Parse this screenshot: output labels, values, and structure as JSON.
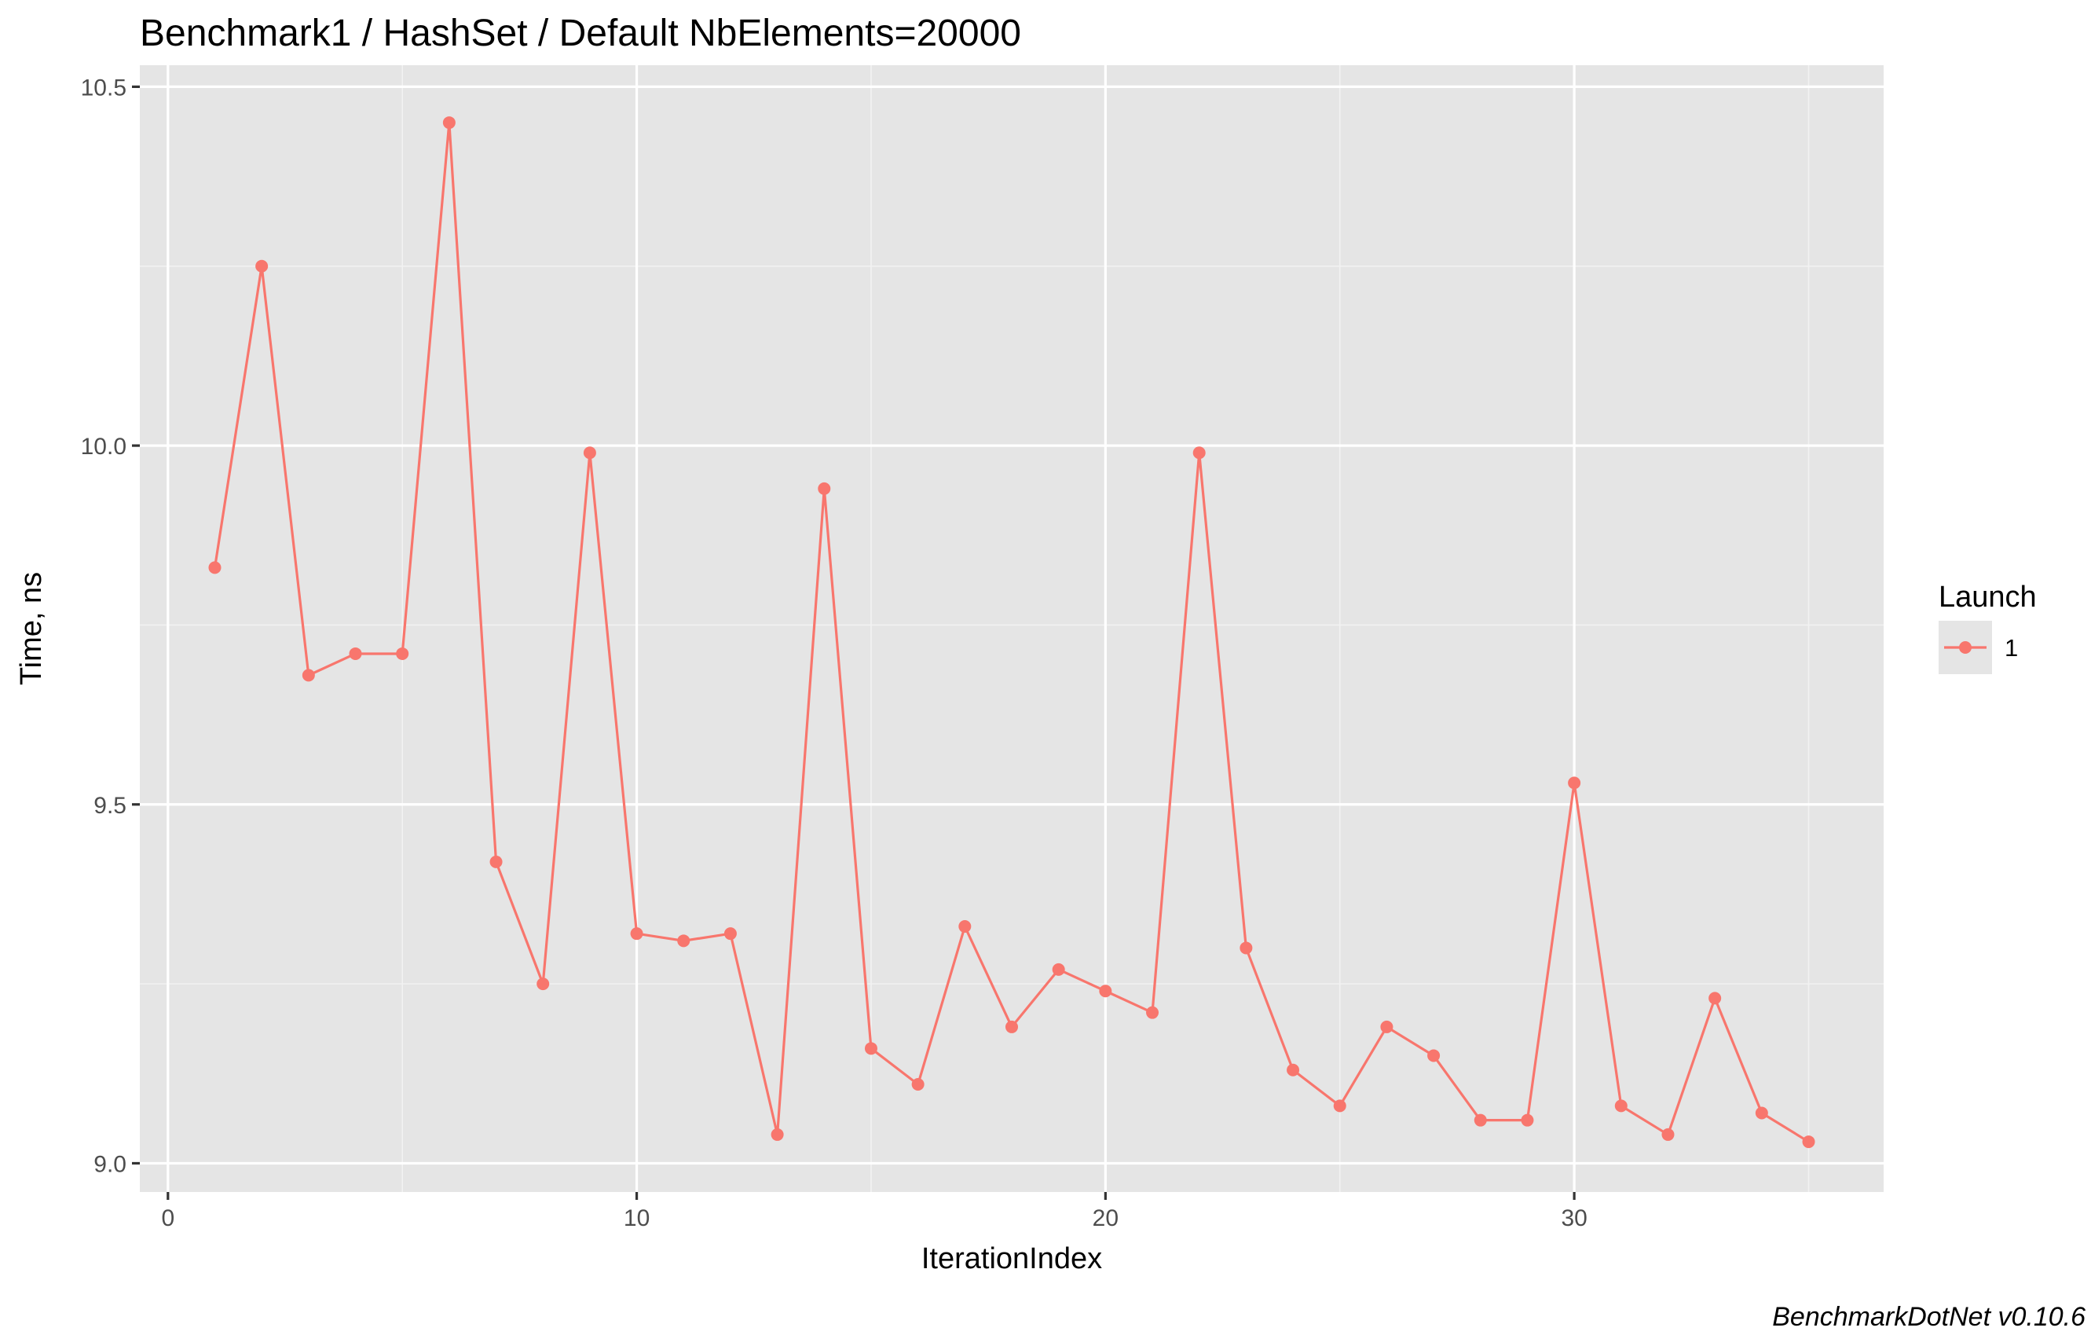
{
  "chart_data": {
    "type": "line",
    "title": "Benchmark1 / HashSet / Default NbElements=20000",
    "xlabel": "IterationIndex",
    "ylabel": "Time, ns",
    "xlim": [
      -0.6,
      36.6
    ],
    "ylim": [
      8.96,
      10.53
    ],
    "x_ticks": [
      0,
      10,
      20,
      30
    ],
    "x_tick_labels": [
      "0",
      "10",
      "20",
      "30"
    ],
    "x_minor_ticks": [
      5,
      15,
      25,
      35
    ],
    "y_ticks": [
      9.0,
      9.5,
      10.0,
      10.5
    ],
    "y_tick_labels": [
      "9.0",
      "9.5",
      "10.0",
      "10.5"
    ],
    "y_minor_ticks": [
      9.25,
      9.75,
      10.25
    ],
    "grid": true,
    "panel_background": "#e5e5e5",
    "legend": {
      "title": "Launch",
      "position": "right"
    },
    "caption": "BenchmarkDotNet v0.10.6",
    "series": [
      {
        "name": "1",
        "color": "#f8766d",
        "x": [
          1,
          2,
          3,
          4,
          5,
          6,
          7,
          8,
          9,
          10,
          11,
          12,
          13,
          14,
          15,
          16,
          17,
          18,
          19,
          20,
          21,
          22,
          23,
          24,
          25,
          26,
          27,
          28,
          29,
          30,
          31,
          32,
          33,
          34,
          35
        ],
        "y": [
          9.83,
          10.25,
          9.68,
          9.71,
          9.71,
          10.45,
          9.42,
          9.25,
          9.99,
          9.32,
          9.31,
          9.32,
          9.04,
          9.94,
          9.16,
          9.11,
          9.33,
          9.19,
          9.27,
          9.24,
          9.21,
          9.99,
          9.3,
          9.13,
          9.08,
          9.19,
          9.15,
          9.06,
          9.06,
          9.53,
          9.08,
          9.04,
          9.23,
          9.07,
          9.03
        ]
      }
    ]
  }
}
